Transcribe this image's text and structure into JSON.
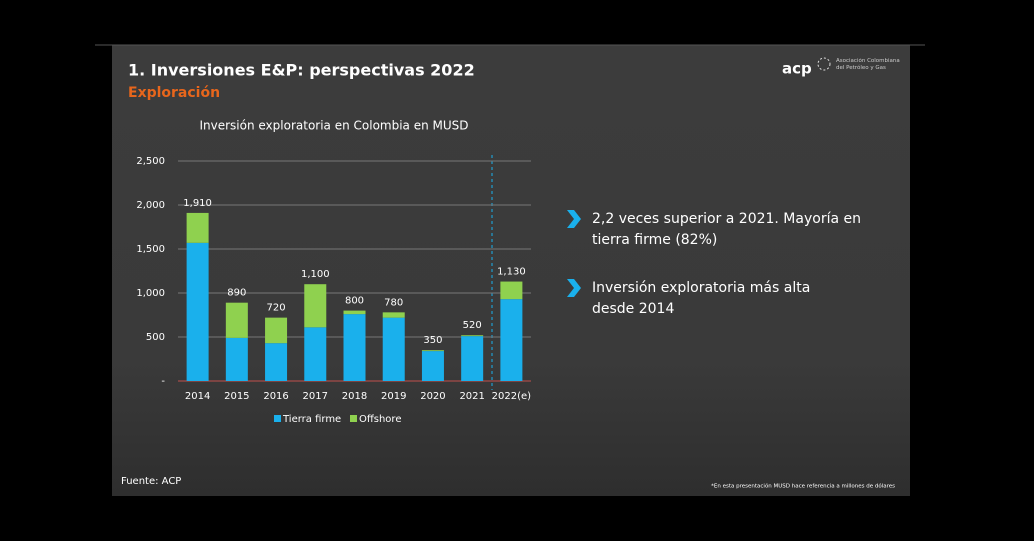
{
  "header": {
    "title": "1. Inversiones E&P: perspectivas 2022",
    "subtitle": "Exploración"
  },
  "logo": {
    "name": "acp",
    "tagline": "Asociación Colombiana del Petróleo y Gas"
  },
  "chart_data": {
    "type": "stacked_bar",
    "title": "Inversión exploratoria en Colombia en MUSD",
    "categories": [
      "2014",
      "2015",
      "2016",
      "2017",
      "2018",
      "2019",
      "2020",
      "2021",
      "2022(e)"
    ],
    "series": [
      {
        "name": "Tierra firme",
        "color": "#1ab0ec",
        "values": [
          1570,
          490,
          430,
          610,
          760,
          720,
          340,
          510,
          930
        ]
      },
      {
        "name": "Offshore",
        "color": "#8fd14f",
        "values": [
          340,
          400,
          290,
          490,
          40,
          60,
          10,
          10,
          200
        ]
      }
    ],
    "totals": [
      1910,
      890,
      720,
      1100,
      800,
      780,
      350,
      520,
      1130
    ],
    "total_labels": [
      "1,910",
      "890",
      "720",
      "1,100",
      "800",
      "780",
      "350",
      "520",
      "1,130"
    ],
    "ylim": [
      0,
      2500
    ],
    "yticks": [
      {
        "value": 0,
        "label": "-"
      },
      500,
      {
        "value": 1000,
        "label": "1,000"
      },
      {
        "value": 1500,
        "label": "1,500"
      },
      {
        "value": 2000,
        "label": "2,000"
      },
      {
        "value": 2500,
        "label": "2,500"
      }
    ],
    "grid": true,
    "legend": "bottom"
  },
  "bullets": [
    [
      "2,2 veces superior a 2021. Mayoría en",
      "tierra firme (82%)"
    ],
    [
      "Inversión exploratoria más alta",
      "desde 2014"
    ]
  ],
  "source": "Fuente: ACP",
  "footnote": "*En esta presentación MUSD hace referencia a millones de dólares"
}
